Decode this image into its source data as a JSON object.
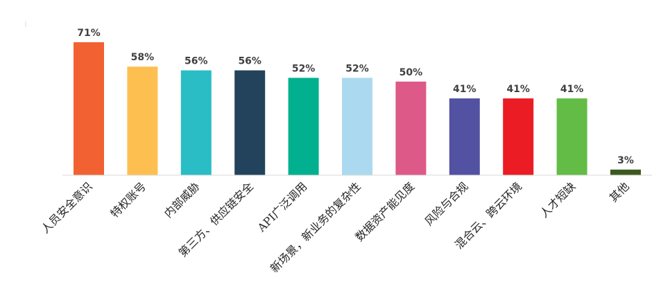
{
  "chart_data": {
    "type": "bar",
    "categories": [
      "人员安全意识",
      "特权账号",
      "内部威胁",
      "第三方、供应链安全",
      "API广泛调用",
      "新场景，新业务的复杂性",
      "数据资产能见度",
      "风险与合规",
      "混合云、跨云环境",
      "人才短缺",
      "其他"
    ],
    "values": [
      71,
      58,
      56,
      56,
      52,
      52,
      50,
      41,
      41,
      41,
      3
    ],
    "value_labels": [
      "71%",
      "58%",
      "56%",
      "56%",
      "52%",
      "52%",
      "50%",
      "41%",
      "41%",
      "41%",
      "3%"
    ],
    "colors": [
      "#F26132",
      "#FDC050",
      "#2ABDC5",
      "#22435B",
      "#00B08F",
      "#ABDAF0",
      "#DD5987",
      "#5251A2",
      "#EB1C24",
      "#63BC46",
      "#3C5A1E"
    ],
    "title": "",
    "xlabel": "",
    "ylabel": "",
    "ylim": [
      0,
      71
    ],
    "grid": false,
    "legend": "none"
  }
}
